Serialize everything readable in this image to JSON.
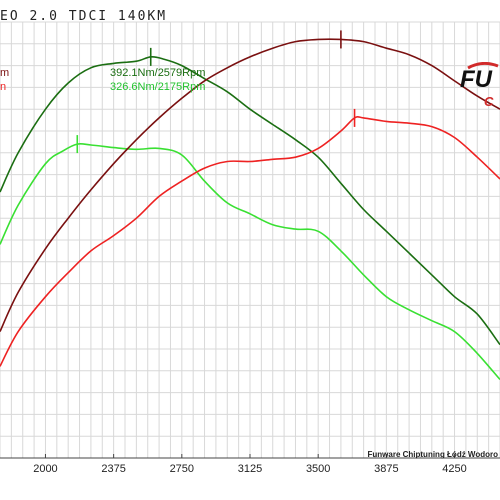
{
  "title": "EO 2.0 TDCI 140KM",
  "peak_labels": {
    "top": "392.1Nm/2579Rpm",
    "bottom": "326.6Nm/2175Rpm"
  },
  "credit": "Funware Chiptuning Łódź Wodoro",
  "logo": {
    "text_top": "FU",
    "text_bottom": "C"
  },
  "colors": {
    "dark_green": "#1b6e12",
    "light_green": "#39e032",
    "dark_red": "#7a1010",
    "red": "#ee2222",
    "grid": "#d8d8d8"
  },
  "chart_data": {
    "type": "line",
    "title": "EO 2.0 TDCI 140KM",
    "xlabel": "",
    "ylabel": "",
    "x_ticks": [
      2000,
      2375,
      2750,
      3125,
      3500,
      3875,
      4250
    ],
    "xlim": [
      1750,
      4500
    ],
    "ylim": [
      0,
      100
    ],
    "grid": true,
    "series": [
      {
        "name": "392.1Nm/2579Rpm",
        "color": "#1b6e12",
        "peak": [
          2579,
          92
        ],
        "x": [
          1750,
          1850,
          2000,
          2125,
          2250,
          2375,
          2500,
          2579,
          2650,
          2750,
          2875,
          3000,
          3125,
          3250,
          3375,
          3500,
          3625,
          3750,
          3875,
          4000,
          4125,
          4250,
          4375,
          4500
        ],
        "y": [
          61,
          70,
          80,
          86,
          89.5,
          90.5,
          91,
          92,
          91.5,
          90,
          87,
          84,
          80,
          76.5,
          73,
          69,
          63,
          57,
          52,
          47,
          42,
          37,
          33,
          26
        ]
      },
      {
        "name": "326.6Nm/2175Rpm",
        "color": "#39e032",
        "peak": [
          2175,
          72
        ],
        "x": [
          1750,
          1850,
          2000,
          2100,
          2175,
          2250,
          2375,
          2500,
          2625,
          2750,
          2875,
          3000,
          3125,
          3250,
          3375,
          3500,
          3625,
          3750,
          3875,
          4000,
          4125,
          4250,
          4375,
          4500
        ],
        "y": [
          49,
          58,
          67.5,
          70.5,
          72,
          71.8,
          71.2,
          70.8,
          71,
          69.5,
          63.5,
          58.5,
          56,
          53.5,
          52.5,
          52,
          47.5,
          42,
          37,
          34,
          31.5,
          29,
          24,
          18
        ]
      },
      {
        "name": "",
        "color": "#7a1010",
        "peak": [
          3625,
          96
        ],
        "x": [
          1750,
          1850,
          2000,
          2125,
          2250,
          2375,
          2500,
          2625,
          2750,
          2875,
          3000,
          3125,
          3250,
          3375,
          3500,
          3625,
          3750,
          3875,
          4000,
          4125,
          4250,
          4375,
          4500
        ],
        "y": [
          29,
          38,
          48,
          55,
          61.5,
          67.5,
          73,
          78,
          82.5,
          86.5,
          89.5,
          92,
          94,
          95.5,
          96,
          96,
          95.5,
          94,
          92.5,
          90,
          86.5,
          83,
          80
        ]
      },
      {
        "name": "",
        "color": "#ee2222",
        "peak": [
          3700,
          78
        ],
        "x": [
          1750,
          1850,
          2000,
          2125,
          2250,
          2375,
          2500,
          2625,
          2750,
          2875,
          3000,
          3125,
          3250,
          3375,
          3500,
          3625,
          3700,
          3750,
          3875,
          4000,
          4125,
          4250,
          4375,
          4500
        ],
        "y": [
          21,
          29,
          37,
          42.5,
          47.5,
          51,
          55,
          60,
          63.5,
          66.5,
          68,
          68,
          68.5,
          69,
          71,
          75,
          78,
          78,
          77.2,
          76.8,
          76,
          73.5,
          69,
          64
        ]
      }
    ]
  }
}
